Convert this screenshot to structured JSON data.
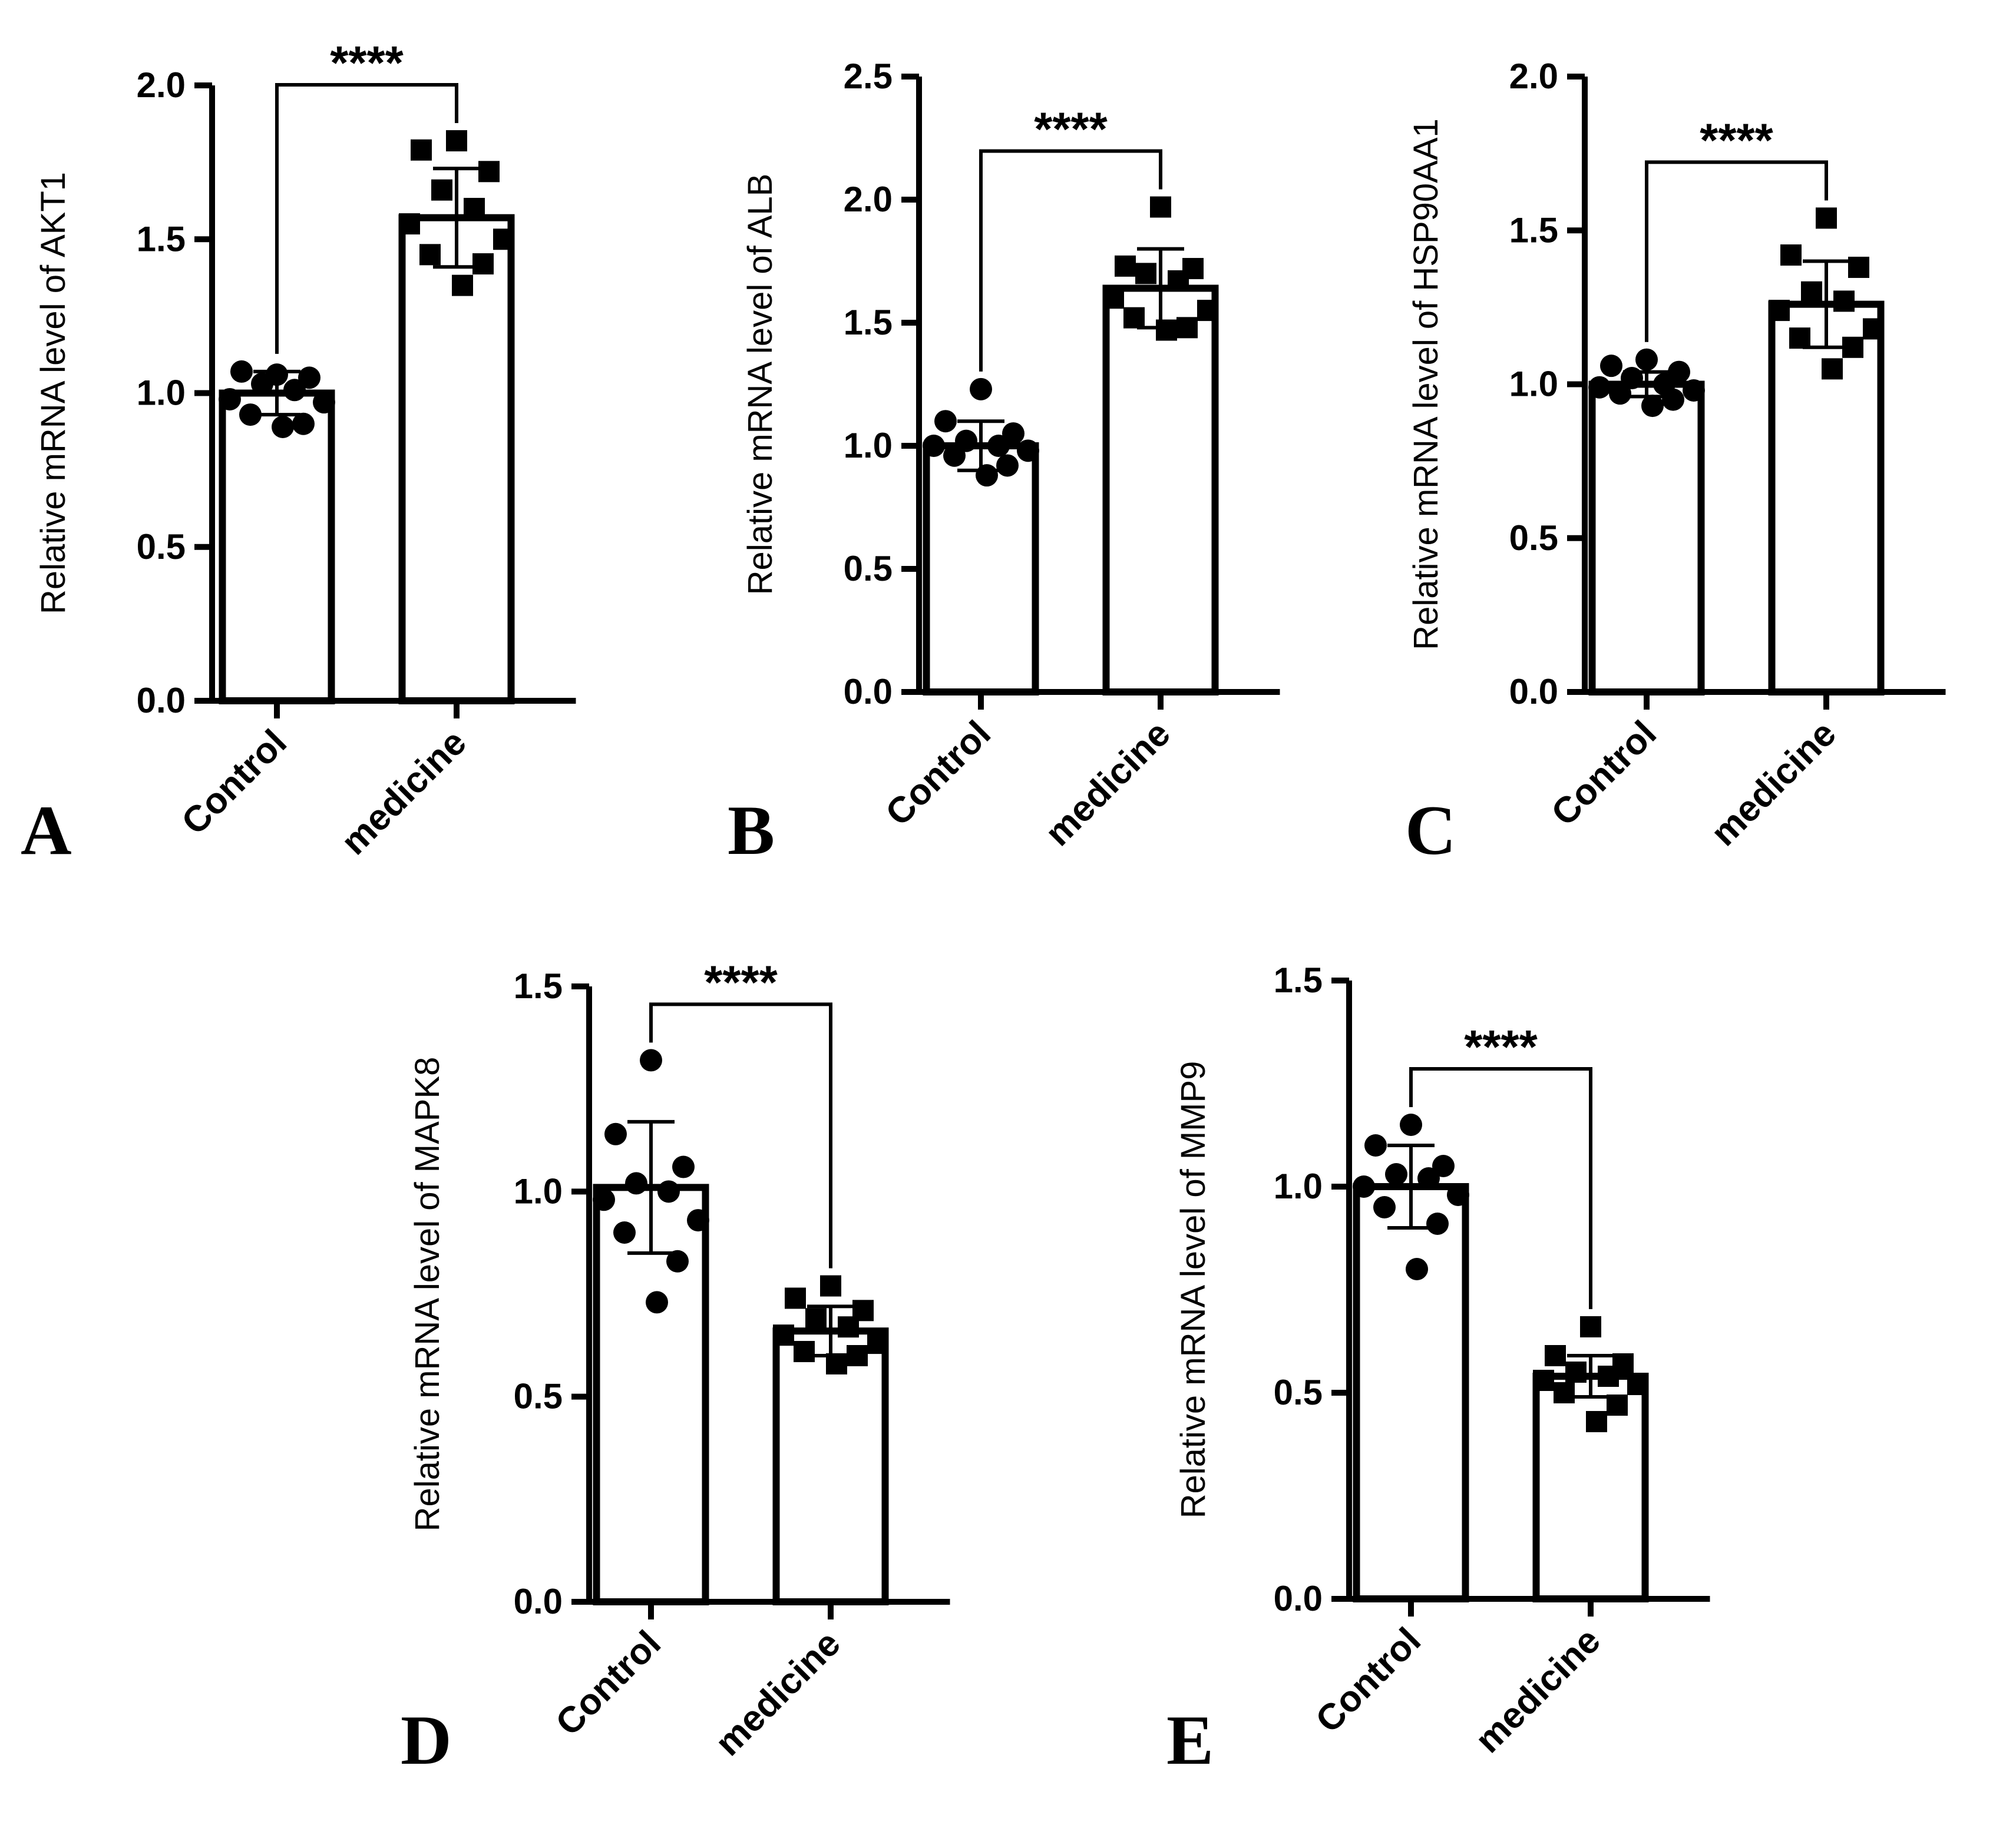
{
  "chart_data": [
    {
      "panel": "A",
      "type": "bar",
      "categories": [
        "Control",
        "medicine"
      ],
      "values": [
        1.0,
        1.57
      ],
      "error": [
        0.07,
        0.16
      ],
      "points": [
        [
          1.06,
          1.07,
          1.05,
          1.03,
          1.01,
          0.98,
          0.97,
          0.93,
          0.9,
          0.89
        ],
        [
          1.82,
          1.79,
          1.72,
          1.66,
          1.6,
          1.55,
          1.5,
          1.45,
          1.42,
          1.35
        ]
      ],
      "markers": [
        "circle",
        "square"
      ],
      "ylabel": "Relative mRNA level of AKT1",
      "ylim": [
        0,
        2.0
      ],
      "yticks": [
        0.0,
        0.5,
        1.0,
        1.5,
        2.0
      ],
      "ytick_labels": [
        "0.0",
        "0.5",
        "1.0",
        "1.5",
        "2.0"
      ],
      "significance": "****"
    },
    {
      "panel": "B",
      "type": "bar",
      "categories": [
        "Control",
        "medicine"
      ],
      "values": [
        1.0,
        1.64
      ],
      "error": [
        0.1,
        0.16
      ],
      "points": [
        [
          1.23,
          1.1,
          1.05,
          1.02,
          1.0,
          1.0,
          0.98,
          0.96,
          0.92,
          0.88
        ],
        [
          1.97,
          1.73,
          1.72,
          1.7,
          1.67,
          1.6,
          1.55,
          1.52,
          1.48,
          1.47
        ]
      ],
      "markers": [
        "circle",
        "square"
      ],
      "ylabel": "Relative mRNA level of ALB",
      "ylim": [
        0,
        2.5
      ],
      "yticks": [
        0.0,
        0.5,
        1.0,
        1.5,
        2.0,
        2.5
      ],
      "ytick_labels": [
        "0.0",
        "0.5",
        "1.0",
        "1.5",
        "2.0",
        "2.5"
      ],
      "significance": "****"
    },
    {
      "panel": "C",
      "type": "bar",
      "categories": [
        "Control",
        "medicine"
      ],
      "values": [
        1.0,
        1.26
      ],
      "error": [
        0.04,
        0.14
      ],
      "points": [
        [
          1.08,
          1.06,
          1.04,
          1.02,
          1.0,
          0.99,
          0.98,
          0.97,
          0.95,
          0.93
        ],
        [
          1.54,
          1.42,
          1.38,
          1.3,
          1.27,
          1.24,
          1.18,
          1.15,
          1.12,
          1.05
        ]
      ],
      "markers": [
        "circle",
        "square"
      ],
      "ylabel": "Relative mRNA level of HSP90AA1",
      "ylim": [
        0,
        2.0
      ],
      "yticks": [
        0.0,
        0.5,
        1.0,
        1.5,
        2.0
      ],
      "ytick_labels": [
        "0.0",
        "0.5",
        "1.0",
        "1.5",
        "2.0"
      ],
      "significance": "****"
    },
    {
      "panel": "D",
      "type": "bar",
      "categories": [
        "Control",
        "medicine"
      ],
      "values": [
        1.01,
        0.66
      ],
      "error": [
        0.16,
        0.06
      ],
      "points": [
        [
          1.32,
          1.14,
          1.06,
          1.02,
          1.0,
          0.98,
          0.93,
          0.9,
          0.83,
          0.73
        ],
        [
          0.77,
          0.74,
          0.71,
          0.69,
          0.67,
          0.65,
          0.63,
          0.61,
          0.6,
          0.58
        ]
      ],
      "markers": [
        "circle",
        "square"
      ],
      "ylabel": "Relative mRNA level of MAPK8",
      "ylim": [
        0,
        1.5
      ],
      "yticks": [
        0.0,
        0.5,
        1.0,
        1.5
      ],
      "ytick_labels": [
        "0.0",
        "0.5",
        "1.0",
        "1.5"
      ],
      "significance": "****"
    },
    {
      "panel": "E",
      "type": "bar",
      "categories": [
        "Control",
        "medicine"
      ],
      "values": [
        1.0,
        0.54
      ],
      "error": [
        0.1,
        0.05
      ],
      "points": [
        [
          1.15,
          1.1,
          1.05,
          1.03,
          1.02,
          1.0,
          0.98,
          0.95,
          0.91,
          0.8
        ],
        [
          0.66,
          0.59,
          0.57,
          0.55,
          0.54,
          0.53,
          0.52,
          0.5,
          0.47,
          0.43
        ]
      ],
      "markers": [
        "circle",
        "square"
      ],
      "ylabel": "Relative mRNA level of MMP9",
      "ylim": [
        0,
        1.5
      ],
      "yticks": [
        0.0,
        0.5,
        1.0,
        1.5
      ],
      "ytick_labels": [
        "0.0",
        "0.5",
        "1.0",
        "1.5"
      ],
      "significance": "****"
    }
  ],
  "colors": {
    "ink": "#000000",
    "bar_fill": "#ffffff"
  }
}
